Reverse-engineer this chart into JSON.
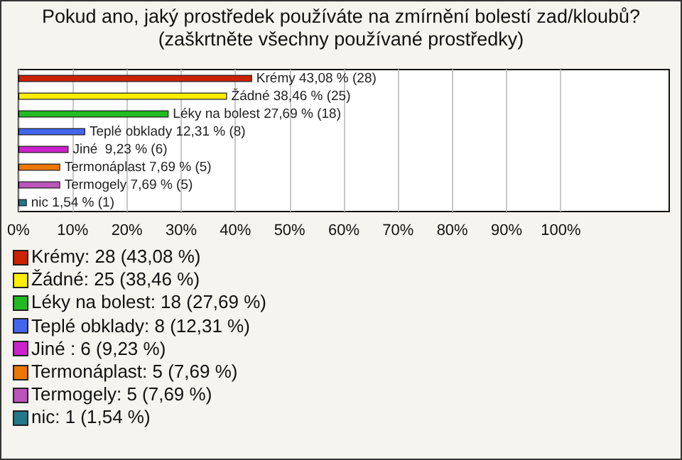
{
  "chart_data": {
    "type": "bar",
    "orientation": "horizontal",
    "title": "Pokud ano, jaký prostředek používáte na zmírnění bolestí zad/kloubů? (zaškrtněte všechny používané prostředky)",
    "categories": [
      null,
      null,
      null,
      null,
      null,
      null,
      null,
      null
    ],
    "values": [
      43.08,
      38.46,
      27.69,
      12.31,
      9.23,
      7.69,
      7.69,
      1.54
    ],
    "colors": [
      "#cc2200",
      "#ffee00",
      "#22bb22",
      "#4466ee",
      "#cc22cc",
      "#ee7700",
      "#bb55bb",
      "#227788"
    ],
    "value_labels": [
      "Krémy 43,08 % (28)",
      "Žádné 38,46 % (25)",
      "Léky na bolest 27,69 % (18)",
      "Teplé obklady 12,31 % (8)",
      "Jiné  9,23 % (6)",
      "Termonáplast 7,69 % (5)",
      "Termogely 7,69 % (5)",
      "nic 1,54 % (1)"
    ],
    "xlim": [
      0,
      120
    ],
    "xticks": [
      {
        "value": 0,
        "label": "0%"
      },
      {
        "value": 10,
        "label": "10%"
      },
      {
        "value": 20,
        "label": "20%"
      },
      {
        "value": 30,
        "label": "30%"
      },
      {
        "value": 40,
        "label": "40%"
      },
      {
        "value": 50,
        "label": "50%"
      },
      {
        "value": 60,
        "label": "60%"
      },
      {
        "value": 70,
        "label": "70%"
      },
      {
        "value": 80,
        "label": "80%"
      },
      {
        "value": 90,
        "label": "90%"
      },
      {
        "value": 100,
        "label": "100%"
      }
    ],
    "grid": "x",
    "tick_labels": "x",
    "annotations": [
      "Krémy: 28 (43,08 %)",
      "Žádné: 25 (38,46 %)",
      "Léky na bolest: 18 (27,69 %)",
      "Teplé obklady: 8 (12,31 %)",
      "Jiné : 6 (9,23 %)",
      "Termonáplast: 5 (7,69 %)",
      "Termogely: 5 (7,69 %)",
      "nic: 1 (1,54 %)"
    ]
  }
}
